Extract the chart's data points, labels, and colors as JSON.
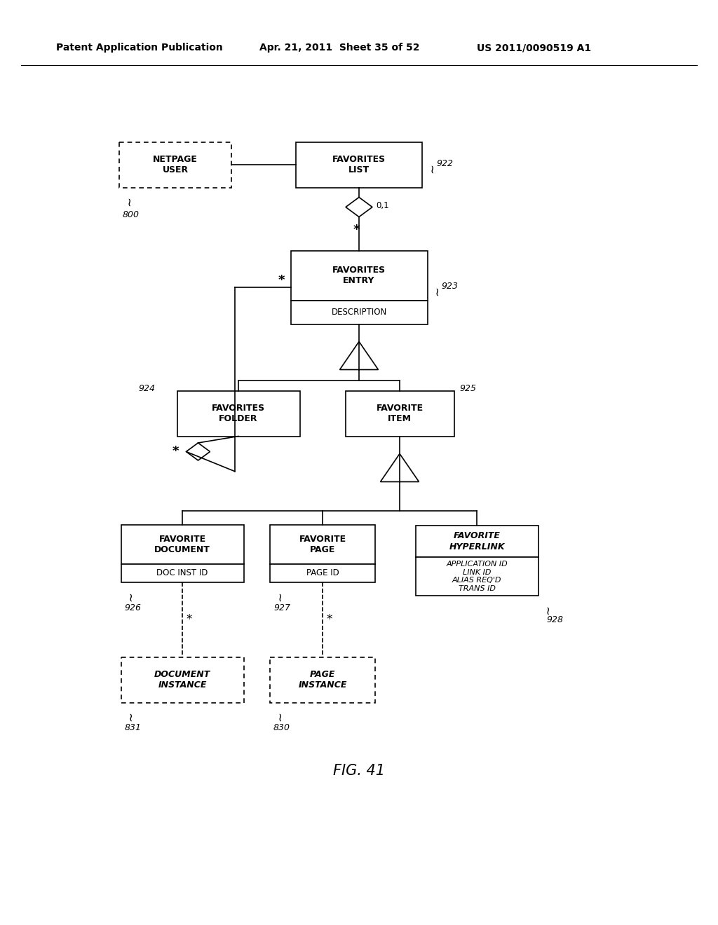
{
  "title_left": "Patent Application Publication",
  "title_mid": "Apr. 21, 2011  Sheet 35 of 52",
  "title_right": "US 2011/0090519 A1",
  "fig_label": "FIG. 41",
  "background": "#ffffff"
}
